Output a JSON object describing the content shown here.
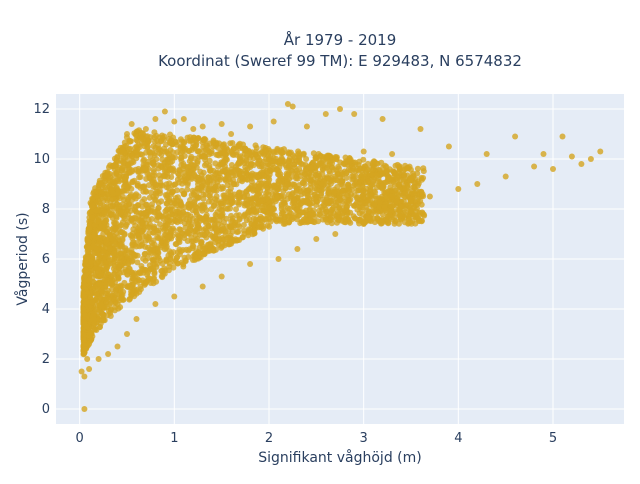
{
  "chart_data": {
    "type": "scatter",
    "title_line1": "År 1979 - 2019",
    "title_line2": "Koordinat (Sweref 99 TM): E 929483, N 6574832",
    "xlabel": "Signifikant våghöjd (m)",
    "ylabel": "Vågperiod (s)",
    "xlim": [
      -0.25,
      5.75
    ],
    "ylim": [
      -0.6,
      12.6
    ],
    "x_ticks": [
      0,
      1,
      2,
      3,
      4,
      5
    ],
    "y_ticks": [
      0,
      2,
      4,
      6,
      8,
      10,
      12
    ],
    "grid": true,
    "legend": "none",
    "marker_color": "#d4a521",
    "plot_background": "#e5ecf6",
    "sampled_points": [
      [
        0.05,
        0.0
      ],
      [
        0.02,
        1.5
      ],
      [
        0.05,
        1.3
      ],
      [
        0.08,
        2.0
      ],
      [
        0.1,
        2.6
      ],
      [
        0.12,
        3.0
      ],
      [
        0.15,
        3.6
      ],
      [
        0.18,
        4.6
      ],
      [
        0.2,
        5.5
      ],
      [
        0.25,
        6.3
      ],
      [
        0.3,
        7.2
      ],
      [
        0.35,
        8.4
      ],
      [
        0.4,
        9.2
      ],
      [
        0.45,
        10.4
      ],
      [
        0.5,
        11.0
      ],
      [
        0.55,
        11.4
      ],
      [
        0.6,
        10.5
      ],
      [
        0.7,
        11.2
      ],
      [
        0.8,
        11.6
      ],
      [
        0.9,
        11.9
      ],
      [
        1.0,
        11.5
      ],
      [
        1.1,
        11.6
      ],
      [
        1.2,
        11.2
      ],
      [
        1.3,
        11.3
      ],
      [
        1.5,
        11.4
      ],
      [
        1.6,
        11.0
      ],
      [
        1.8,
        11.3
      ],
      [
        2.05,
        11.5
      ],
      [
        2.2,
        12.2
      ],
      [
        2.25,
        12.1
      ],
      [
        2.4,
        11.3
      ],
      [
        2.6,
        11.8
      ],
      [
        2.75,
        12.0
      ],
      [
        2.9,
        11.8
      ],
      [
        3.2,
        11.6
      ],
      [
        3.0,
        10.3
      ],
      [
        3.3,
        10.2
      ],
      [
        3.6,
        11.2
      ],
      [
        3.9,
        10.5
      ],
      [
        4.3,
        10.2
      ],
      [
        4.6,
        10.9
      ],
      [
        4.9,
        10.2
      ],
      [
        5.1,
        10.9
      ],
      [
        5.2,
        10.1
      ],
      [
        5.4,
        10.0
      ],
      [
        5.5,
        10.3
      ],
      [
        5.3,
        9.8
      ],
      [
        5.0,
        9.6
      ],
      [
        4.8,
        9.7
      ],
      [
        4.5,
        9.3
      ],
      [
        4.2,
        9.0
      ],
      [
        4.0,
        8.8
      ],
      [
        3.7,
        8.5
      ],
      [
        3.5,
        8.3
      ],
      [
        3.2,
        7.8
      ],
      [
        3.0,
        7.4
      ],
      [
        2.7,
        7.0
      ],
      [
        2.5,
        6.8
      ],
      [
        2.3,
        6.4
      ],
      [
        2.1,
        6.0
      ],
      [
        1.8,
        5.8
      ],
      [
        1.5,
        5.3
      ],
      [
        1.3,
        4.9
      ],
      [
        1.0,
        4.5
      ],
      [
        0.8,
        4.2
      ],
      [
        0.6,
        3.6
      ],
      [
        0.5,
        3.0
      ],
      [
        0.4,
        2.5
      ],
      [
        0.3,
        2.2
      ],
      [
        0.2,
        2.0
      ],
      [
        0.1,
        1.6
      ]
    ]
  }
}
